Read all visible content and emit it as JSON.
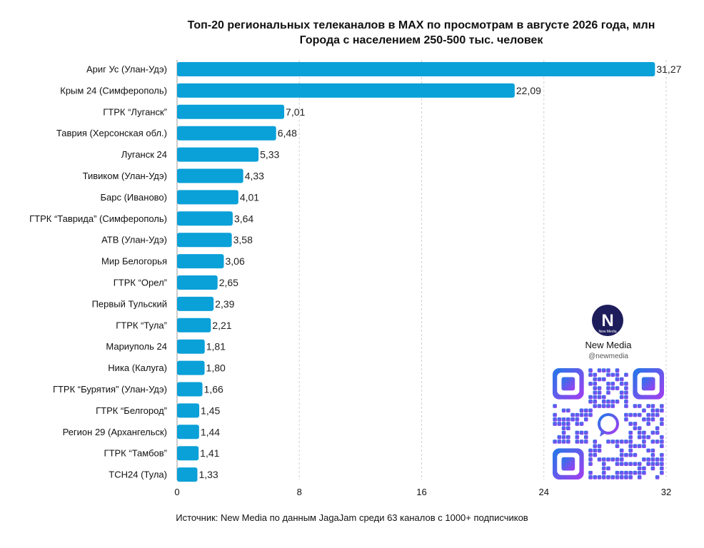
{
  "title_line1": "Топ-20 региональных телеканалов в MAX по просмотрам в августе 2026 года, млн",
  "title_line2": "Города с населением 250-500 тыс. человек",
  "source": "Источник: New Media по данным JagaJam среди 63 каналов с 1000+ подписчиков",
  "brand": {
    "name": "New Media",
    "handle": "@newmedia",
    "logo_text": "New Media",
    "logo_letter": "N",
    "logo_icon": "new-media-logo"
  },
  "colors": {
    "bar": "#0aa0d8",
    "grid": "#cfcfcf",
    "qr_gradient_start": "#1f7ae8",
    "qr_gradient_end": "#a53cf0"
  },
  "chart_data": {
    "type": "bar",
    "orientation": "horizontal",
    "title": "Топ-20 региональных телеканалов в MAX по просмотрам в августе 2026 года, млн",
    "subtitle": "Города с населением 250-500 тыс. человек",
    "categories": [
      "Ариг Ус (Улан-Удэ)",
      "Крым 24 (Симферополь)",
      "ГТРК “Луганск”",
      "Таврия (Херсонская обл.)",
      "Луганск 24",
      "Тивиком (Улан-Удэ)",
      "Барс (Иваново)",
      "ГТРК “Таврида” (Симферополь)",
      "АТВ (Улан-Удэ)",
      "Мир Белогорья",
      "ГТРК “Орел”",
      "Первый Тульский",
      "ГТРК “Тула”",
      "Мариуполь 24",
      "Ника (Калуга)",
      "ГТРК “Бурятия” (Улан-Удэ)",
      "ГТРК “Белгород”",
      "Регион 29 (Архангельск)",
      "ГТРК “Тамбов”",
      "ТСН24 (Тула)"
    ],
    "values": [
      31.27,
      22.09,
      7.01,
      6.48,
      5.33,
      4.33,
      4.01,
      3.64,
      3.58,
      3.06,
      2.65,
      2.39,
      2.21,
      1.81,
      1.8,
      1.66,
      1.45,
      1.44,
      1.41,
      1.33
    ],
    "value_labels": [
      "31,27",
      "22,09",
      "7,01",
      "6,48",
      "5,33",
      "4,33",
      "4,01",
      "3,64",
      "3,58",
      "3,06",
      "2,65",
      "2,39",
      "2,21",
      "1,81",
      "1,80",
      "1,66",
      "1,45",
      "1,44",
      "1,41",
      "1,33"
    ],
    "xlim": [
      0,
      32
    ],
    "xticks": [
      0,
      8,
      16,
      24,
      32
    ],
    "xlabel": "",
    "ylabel": "",
    "grid": "vertical dashed",
    "legend": "none"
  }
}
